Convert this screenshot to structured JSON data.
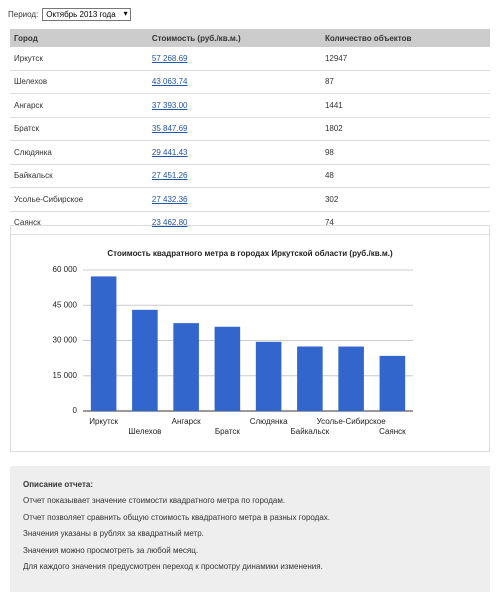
{
  "period": {
    "label": "Период:",
    "selected": "Октябрь 2013 года"
  },
  "table": {
    "headers": [
      "Город",
      "Стоимость (руб./кв.м.)",
      "Количество объектов"
    ],
    "rows": [
      [
        "Иркутск",
        "57 268.69",
        "12947"
      ],
      [
        "Шелехов",
        "43 063.74",
        "87"
      ],
      [
        "Ангарск",
        "37 393.00",
        "1441"
      ],
      [
        "Братск",
        "35 847.69",
        "1802"
      ],
      [
        "Слюдянка",
        "29 441.43",
        "98"
      ],
      [
        "Байкальск",
        "27 451.26",
        "48"
      ],
      [
        "Усолье-Сибирское",
        "27 432.36",
        "302"
      ],
      [
        "Саянск",
        "23 462.80",
        "74"
      ]
    ]
  },
  "chart_data": {
    "type": "bar",
    "title": "Стоимость квадратного метра в городах Иркутской области (руб./кв.м.)",
    "categories": [
      "Иркутск",
      "Шелехов",
      "Ангарск",
      "Братск",
      "Слюдянка",
      "Байкальск",
      "Усолье-Сибирское",
      "Саянск"
    ],
    "values": [
      57268.69,
      43063.74,
      37393.0,
      35847.69,
      29441.43,
      27451.26,
      27432.36,
      23462.8
    ],
    "color": "#3366cc",
    "ylim": [
      0,
      60000
    ],
    "yticks": [
      0,
      {
        "value": 15000,
        "label": "15 000"
      },
      {
        "value": 30000,
        "label": "30 000"
      },
      {
        "value": 45000,
        "label": "45 000"
      },
      {
        "value": 60000,
        "label": "60 000"
      }
    ],
    "grid": true
  },
  "description": {
    "title": "Описание отчета:",
    "lines": [
      "Отчет показывает значение стоимости квадратного метра по городам.",
      "Отчет позволяет сравнить общую стоимость квадратного метра в разных городах.",
      "Значения указаны в рублях за квадратный метр.",
      "Значения можно просмотреть за любой месяц.",
      "Для каждого значения предусмотрен переход к просмотру динамики изменения."
    ]
  }
}
